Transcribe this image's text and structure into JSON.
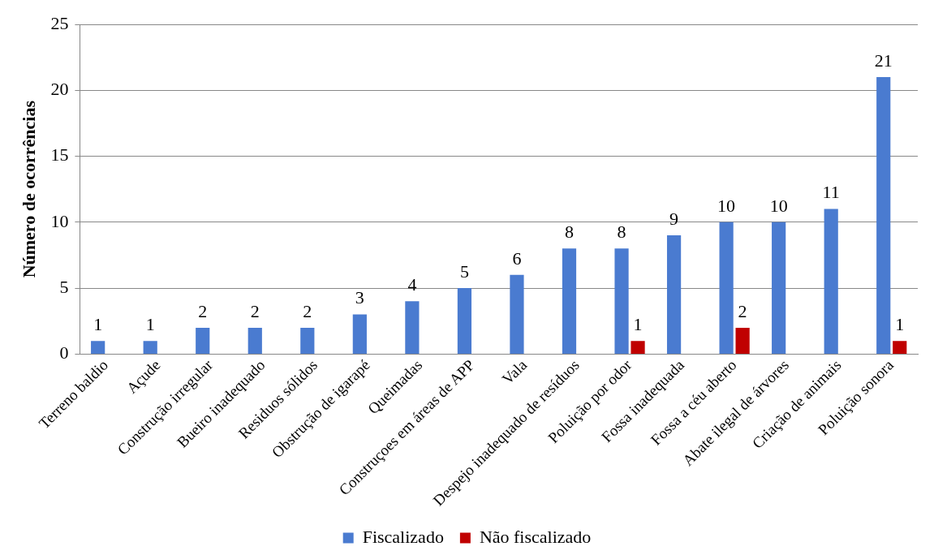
{
  "chart_data": {
    "type": "bar",
    "ylabel": "Número de ocorrências",
    "categories": [
      "Terreno baldio",
      "Açude",
      "Construção irregular",
      "Bueiro inadequado",
      "Residuos sólidos",
      "Obstrução de igarapé",
      "Queimadas",
      "Construçoes em áreas de APP",
      "Vala",
      "Despejo inadequado de resíduos",
      "Poluição por odor",
      "Fossa inadequada",
      "Fossa a céu aberto",
      "Abate ilegal de árvores",
      "Criação de animais",
      "Poluição sonora"
    ],
    "series": [
      {
        "name": "Fiscalizado",
        "color": "#4a7bd0",
        "values": [
          1,
          1,
          2,
          2,
          2,
          3,
          4,
          5,
          6,
          8,
          8,
          9,
          10,
          10,
          11,
          21
        ],
        "value_labels": [
          "1",
          "1",
          "2",
          "2",
          "2",
          "3",
          "4",
          "5",
          "6",
          "8",
          "8",
          "9",
          "10",
          "10",
          "11",
          "21"
        ]
      },
      {
        "name": "Não fiscalizado",
        "color": "#c00000",
        "values": [
          0,
          0,
          0,
          0,
          0,
          0,
          0,
          0,
          0,
          0,
          1,
          0,
          2,
          0,
          0,
          1
        ],
        "value_labels": [
          null,
          null,
          null,
          null,
          null,
          null,
          null,
          null,
          null,
          null,
          "1",
          null,
          "2",
          null,
          null,
          "1"
        ]
      }
    ],
    "ylim": [
      0,
      25
    ],
    "yticks": [
      0,
      5,
      10,
      15,
      20,
      25
    ],
    "grid": "y",
    "legend": "bottom"
  }
}
